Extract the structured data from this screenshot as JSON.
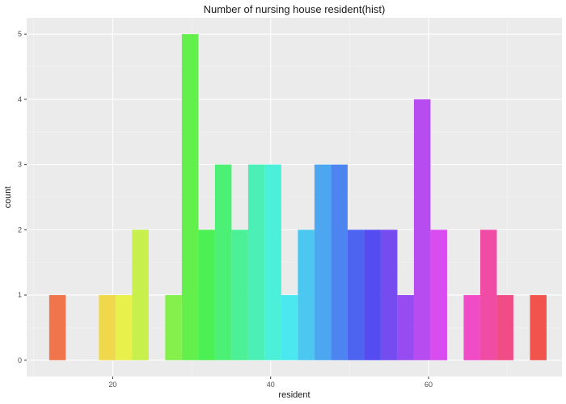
{
  "chart_data": {
    "type": "bar",
    "title": "Number of nursing house resident(hist)",
    "xlabel": "resident",
    "ylabel": "count",
    "xlim": [
      9.1,
      76.9
    ],
    "ylim": [
      -0.25,
      5.25
    ],
    "x_ticks": [
      20,
      40,
      60
    ],
    "y_ticks": [
      0,
      1,
      2,
      3,
      4,
      5
    ],
    "grid": true,
    "legend": "none",
    "bin_width": 2.1,
    "bin_centers": [
      13.0,
      15.1,
      17.2,
      19.3,
      21.4,
      23.5,
      25.6,
      27.7,
      29.8,
      31.9,
      34.0,
      36.1,
      38.2,
      40.3,
      42.4,
      44.5,
      46.6,
      48.7,
      50.8,
      52.9,
      55.0,
      57.1,
      59.2,
      61.3,
      63.4,
      65.5,
      67.6,
      69.7,
      71.8,
      73.9
    ],
    "values": [
      1,
      0,
      0,
      1,
      1,
      2,
      0,
      1,
      5,
      2,
      3,
      2,
      3,
      3,
      1,
      2,
      3,
      3,
      2,
      2,
      2,
      1,
      4,
      2,
      0,
      1,
      2,
      1,
      0,
      1
    ]
  }
}
